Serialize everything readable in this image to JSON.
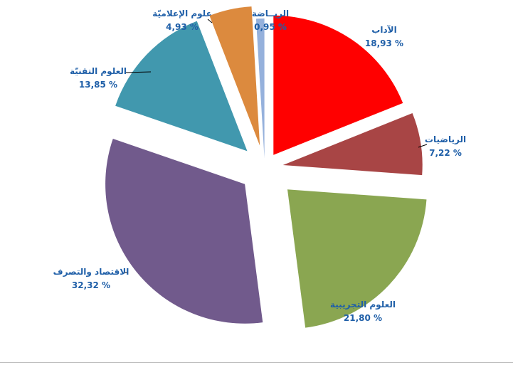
{
  "chart_data": {
    "type": "pie",
    "exploded": true,
    "start_angle_deg": 0,
    "direction": "clockwise",
    "label_color": "#1f5fa8",
    "slices": [
      {
        "label": "الآداب",
        "value": 18.93,
        "value_text": "18,93 %",
        "color": "#ff0000"
      },
      {
        "label": "الرياضيات",
        "value": 7.22,
        "value_text": "7,22 %",
        "color": "#a84545"
      },
      {
        "label": "العلوم التجريبية",
        "value": 21.8,
        "value_text": "21,80 %",
        "color": "#8aa651"
      },
      {
        "label": "الاقتصاد والتصرف",
        "value": 32.32,
        "value_text": "32,32 %",
        "color": "#715a8c"
      },
      {
        "label": "العلوم التقنيّة",
        "value": 13.85,
        "value_text": "13,85 %",
        "color": "#4198ae"
      },
      {
        "label": "علوم الإعلاميّة",
        "value": 4.93,
        "value_text": "4,93 %",
        "color": "#dc8a3e"
      },
      {
        "label": "الريــاضة",
        "value": 0.95,
        "value_text": "0,95 %",
        "color": "#95b1dc"
      }
    ]
  }
}
